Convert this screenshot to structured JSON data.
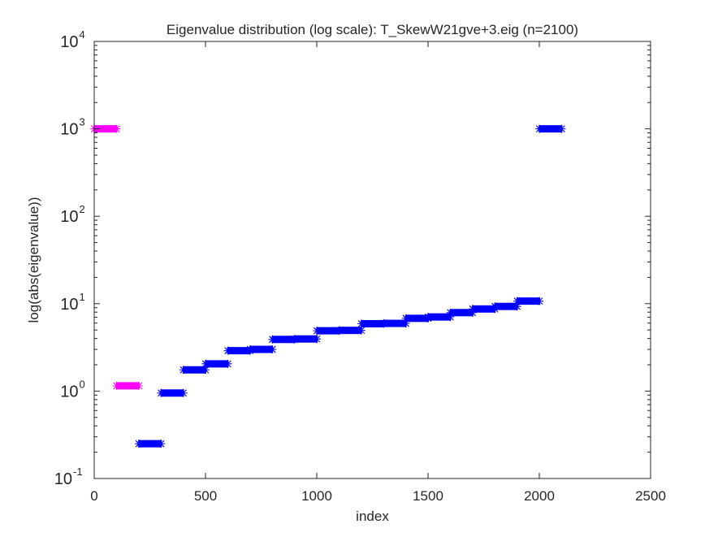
{
  "chart_data": {
    "type": "scatter",
    "title": "Eigenvalue distribution (log scale): T_SkewW21gve+3.eig (n=2100)",
    "xlabel": "index",
    "ylabel": "log(abs(eigenvalue))",
    "xlim": [
      0,
      2500
    ],
    "ylim": [
      0.1,
      10000
    ],
    "yscale": "log",
    "grid": false,
    "legend": "none",
    "marker": "asterisk",
    "x_ticks": [
      "0",
      "500",
      "1000",
      "1500",
      "2000",
      "2500"
    ],
    "y_ticks": [
      {
        "base": "10",
        "exp": "-1"
      },
      {
        "base": "10",
        "exp": "0"
      },
      {
        "base": "10",
        "exp": "1"
      },
      {
        "base": "10",
        "exp": "2"
      },
      {
        "base": "10",
        "exp": "3"
      },
      {
        "base": "10",
        "exp": "4"
      }
    ],
    "series": [
      {
        "color": "#ff00ff",
        "segments": [
          {
            "x_start": 1,
            "x_end": 100,
            "y": 1000
          },
          {
            "x_start": 101,
            "x_end": 200,
            "y": 1.15
          }
        ]
      },
      {
        "color": "#0000ff",
        "segments": [
          {
            "x_start": 201,
            "x_end": 300,
            "y": 0.25
          },
          {
            "x_start": 301,
            "x_end": 400,
            "y": 0.95
          },
          {
            "x_start": 401,
            "x_end": 500,
            "y": 1.75
          },
          {
            "x_start": 501,
            "x_end": 600,
            "y": 2.05
          },
          {
            "x_start": 601,
            "x_end": 700,
            "y": 2.9
          },
          {
            "x_start": 701,
            "x_end": 800,
            "y": 3.0
          },
          {
            "x_start": 801,
            "x_end": 900,
            "y": 3.9
          },
          {
            "x_start": 901,
            "x_end": 1000,
            "y": 3.95
          },
          {
            "x_start": 1001,
            "x_end": 1100,
            "y": 4.9
          },
          {
            "x_start": 1101,
            "x_end": 1200,
            "y": 4.95
          },
          {
            "x_start": 1201,
            "x_end": 1300,
            "y": 5.9
          },
          {
            "x_start": 1301,
            "x_end": 1400,
            "y": 5.95
          },
          {
            "x_start": 1401,
            "x_end": 1500,
            "y": 6.8
          },
          {
            "x_start": 1501,
            "x_end": 1600,
            "y": 7.05
          },
          {
            "x_start": 1601,
            "x_end": 1700,
            "y": 7.9
          },
          {
            "x_start": 1701,
            "x_end": 1800,
            "y": 8.7
          },
          {
            "x_start": 1801,
            "x_end": 1900,
            "y": 9.3
          },
          {
            "x_start": 1901,
            "x_end": 2000,
            "y": 10.7
          },
          {
            "x_start": 2001,
            "x_end": 2100,
            "y": 1000
          }
        ]
      }
    ]
  }
}
